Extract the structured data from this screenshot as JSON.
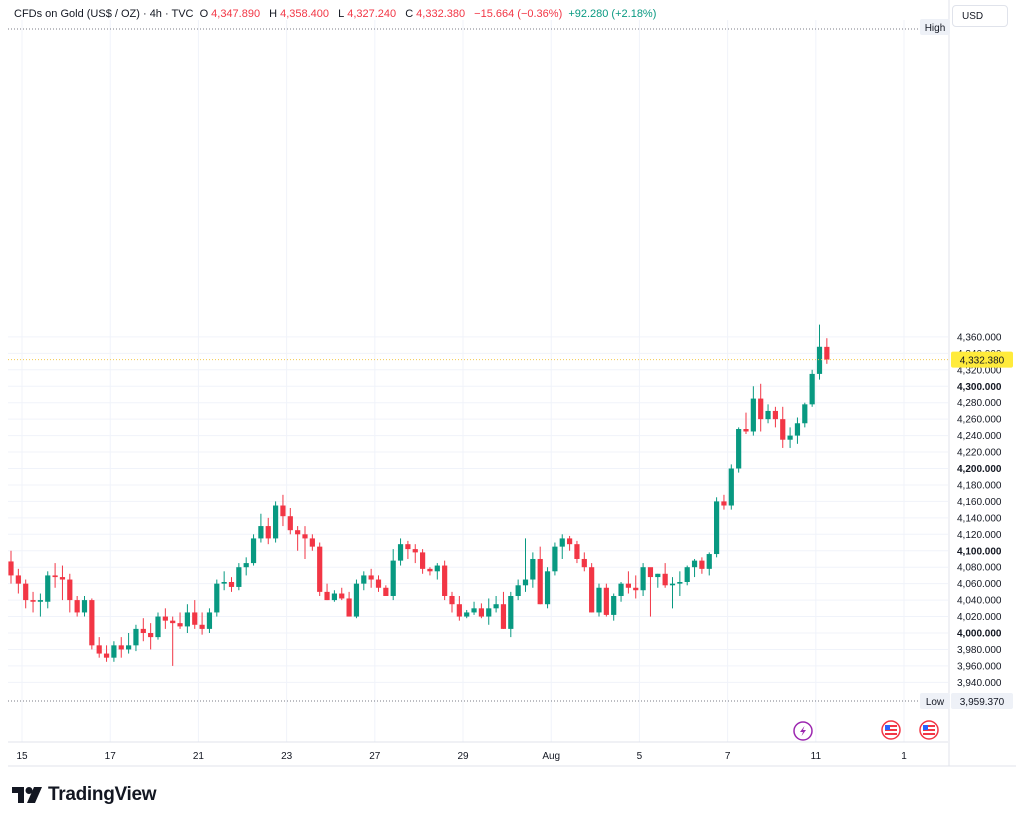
{
  "header": {
    "symbol": "CFDs on Gold (US$ / OZ) · 4h · TVC",
    "open_label": "O",
    "open": "4,347.890",
    "high_label": "H",
    "high": "4,358.400",
    "low_label": "L",
    "low": "4,327.240",
    "close_label": "C",
    "close": "4,332.380",
    "change": "−15.664 (−0.36%)",
    "extra_change": "+92.280 (+2.18%)"
  },
  "currency_button": "USD",
  "brand": "TradingView",
  "markers": {
    "high_label": "High",
    "low_label": "Low",
    "low_value": "3,959.370",
    "last_price": "4,332.380"
  },
  "colors": {
    "up": "#089981",
    "down": "#f23645",
    "last_price_bg": "#ffeb3b",
    "grid": "#f0f3fa"
  },
  "chart_data": {
    "type": "candlestick",
    "title": "CFDs on Gold (US$ / OZ) · 4h · TVC",
    "ylim": [
      3930,
      4380
    ],
    "y_ticks": [
      3940,
      3960,
      3980,
      4000,
      4020,
      4040,
      4060,
      4080,
      4100,
      4120,
      4140,
      4160,
      4180,
      4200,
      4220,
      4240,
      4260,
      4280,
      4300,
      4320,
      4340,
      4360
    ],
    "y_tick_labels": [
      "3,940.000",
      "3,960.000",
      "3,980.000",
      "4,000.000",
      "4,020.000",
      "4,040.000",
      "4,060.000",
      "4,080.000",
      "4,100.000",
      "4,120.000",
      "4,140.000",
      "4,160.000",
      "4,180.000",
      "4,200.000",
      "4,220.000",
      "4,240.000",
      "4,260.000",
      "4,280.000",
      "4,300.000",
      "4,320.000",
      "4,340.000",
      "4,360.000"
    ],
    "x_tick_labels": [
      "15",
      "17",
      "21",
      "23",
      "27",
      "29",
      "Aug",
      "5",
      "7",
      "11",
      "1"
    ],
    "x_tick_index": [
      1.5,
      13.5,
      25.5,
      37.5,
      49.5,
      61.5,
      73.5,
      85.5,
      97.5,
      109.5,
      121.5
    ],
    "grid": true,
    "candles": [
      [
        4087,
        4100,
        4060,
        4070
      ],
      [
        4070,
        4078,
        4048,
        4060
      ],
      [
        4060,
        4065,
        4030,
        4040
      ],
      [
        4040,
        4050,
        4025,
        4038
      ],
      [
        4038,
        4048,
        4020,
        4040
      ],
      [
        4038,
        4075,
        4030,
        4070
      ],
      [
        4070,
        4085,
        4055,
        4068
      ],
      [
        4068,
        4082,
        4040,
        4065
      ],
      [
        4065,
        4072,
        4025,
        4040
      ],
      [
        4040,
        4045,
        4020,
        4025
      ],
      [
        4025,
        4045,
        4020,
        4040
      ],
      [
        4040,
        4042,
        3980,
        3985
      ],
      [
        3985,
        3995,
        3970,
        3975
      ],
      [
        3975,
        3985,
        3965,
        3970
      ],
      [
        3970,
        3990,
        3965,
        3985
      ],
      [
        3985,
        3995,
        3970,
        3980
      ],
      [
        3980,
        4000,
        3975,
        3985
      ],
      [
        3985,
        4010,
        3978,
        4005
      ],
      [
        4005,
        4018,
        3990,
        4000
      ],
      [
        4000,
        4012,
        3980,
        3995
      ],
      [
        3995,
        4025,
        3992,
        4020
      ],
      [
        4020,
        4030,
        4005,
        4015
      ],
      [
        4015,
        4020,
        3960,
        4012
      ],
      [
        4012,
        4025,
        4005,
        4008
      ],
      [
        4008,
        4035,
        4000,
        4025
      ],
      [
        4025,
        4040,
        4005,
        4010
      ],
      [
        4010,
        4025,
        3998,
        4005
      ],
      [
        4005,
        4030,
        4000,
        4025
      ],
      [
        4025,
        4065,
        4020,
        4060
      ],
      [
        4060,
        4075,
        4052,
        4062
      ],
      [
        4062,
        4068,
        4050,
        4056
      ],
      [
        4056,
        4085,
        4052,
        4080
      ],
      [
        4080,
        4092,
        4070,
        4085
      ],
      [
        4085,
        4120,
        4082,
        4115
      ],
      [
        4115,
        4145,
        4110,
        4130
      ],
      [
        4130,
        4140,
        4108,
        4115
      ],
      [
        4115,
        4160,
        4110,
        4155
      ],
      [
        4155,
        4168,
        4130,
        4142
      ],
      [
        4142,
        4152,
        4120,
        4125
      ],
      [
        4125,
        4130,
        4100,
        4120
      ],
      [
        4120,
        4130,
        4090,
        4115
      ],
      [
        4115,
        4120,
        4100,
        4105
      ],
      [
        4105,
        4110,
        4045,
        4050
      ],
      [
        4050,
        4060,
        4040,
        4040
      ],
      [
        4040,
        4052,
        4038,
        4048
      ],
      [
        4048,
        4055,
        4040,
        4042
      ],
      [
        4042,
        4050,
        4020,
        4020
      ],
      [
        4020,
        4065,
        4018,
        4060
      ],
      [
        4060,
        4075,
        4052,
        4070
      ],
      [
        4070,
        4078,
        4055,
        4065
      ],
      [
        4065,
        4070,
        4050,
        4055
      ],
      [
        4055,
        4058,
        4045,
        4045
      ],
      [
        4045,
        4102,
        4040,
        4088
      ],
      [
        4088,
        4115,
        4082,
        4108
      ],
      [
        4108,
        4112,
        4090,
        4102
      ],
      [
        4102,
        4108,
        4085,
        4098
      ],
      [
        4098,
        4102,
        4072,
        4078
      ],
      [
        4078,
        4080,
        4070,
        4075
      ],
      [
        4075,
        4085,
        4065,
        4082
      ],
      [
        4082,
        4088,
        4040,
        4045
      ],
      [
        4045,
        4050,
        4025,
        4035
      ],
      [
        4035,
        4045,
        4015,
        4020
      ],
      [
        4020,
        4028,
        4018,
        4025
      ],
      [
        4025,
        4038,
        4022,
        4030
      ],
      [
        4030,
        4036,
        4018,
        4020
      ],
      [
        4020,
        4042,
        4010,
        4030
      ],
      [
        4030,
        4045,
        4025,
        4035
      ],
      [
        4035,
        4050,
        4005,
        4005
      ],
      [
        4005,
        4050,
        3995,
        4045
      ],
      [
        4045,
        4065,
        4040,
        4058
      ],
      [
        4058,
        4115,
        4050,
        4065
      ],
      [
        4065,
        4098,
        4055,
        4090
      ],
      [
        4090,
        4105,
        4035,
        4035
      ],
      [
        4035,
        4080,
        4030,
        4075
      ],
      [
        4075,
        4110,
        4070,
        4105
      ],
      [
        4105,
        4120,
        4090,
        4115
      ],
      [
        4115,
        4118,
        4100,
        4108
      ],
      [
        4108,
        4112,
        4085,
        4090
      ],
      [
        4090,
        4098,
        4075,
        4080
      ],
      [
        4080,
        4085,
        4025,
        4025
      ],
      [
        4025,
        4060,
        4020,
        4055
      ],
      [
        4055,
        4060,
        4020,
        4022
      ],
      [
        4022,
        4048,
        4015,
        4045
      ],
      [
        4045,
        4062,
        4038,
        4060
      ],
      [
        4060,
        4075,
        4048,
        4055
      ],
      [
        4055,
        4070,
        4042,
        4052
      ],
      [
        4052,
        4085,
        4045,
        4080
      ],
      [
        4080,
        4078,
        4020,
        4068
      ],
      [
        4068,
        4072,
        4055,
        4072
      ],
      [
        4072,
        4085,
        4055,
        4058
      ],
      [
        4058,
        4068,
        4030,
        4060
      ],
      [
        4060,
        4075,
        4045,
        4062
      ],
      [
        4062,
        4082,
        4058,
        4080
      ],
      [
        4080,
        4090,
        4068,
        4088
      ],
      [
        4088,
        4092,
        4072,
        4078
      ],
      [
        4078,
        4098,
        4070,
        4096
      ],
      [
        4096,
        4165,
        4092,
        4160
      ],
      [
        4160,
        4168,
        4150,
        4155
      ],
      [
        4155,
        4205,
        4150,
        4200
      ],
      [
        4200,
        4250,
        4195,
        4248
      ],
      [
        4248,
        4268,
        4242,
        4245
      ],
      [
        4245,
        4300,
        4240,
        4285
      ],
      [
        4285,
        4303,
        4245,
        4260
      ],
      [
        4260,
        4278,
        4255,
        4270
      ],
      [
        4270,
        4275,
        4250,
        4260
      ],
      [
        4260,
        4275,
        4225,
        4235
      ],
      [
        4235,
        4250,
        4225,
        4240
      ],
      [
        4240,
        4262,
        4230,
        4255
      ],
      [
        4255,
        4280,
        4250,
        4278
      ],
      [
        4278,
        4320,
        4275,
        4315
      ],
      [
        4315,
        4375,
        4308,
        4348
      ],
      [
        4347.89,
        4358.4,
        4327.24,
        4332.38
      ]
    ]
  }
}
